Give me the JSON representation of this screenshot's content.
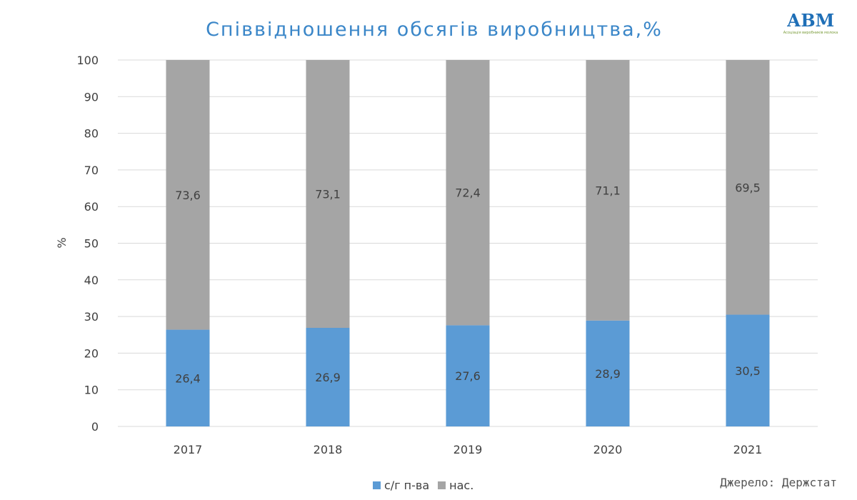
{
  "chart_data": {
    "type": "bar",
    "stacked": true,
    "title": "Співвідношення обсягів виробництва,%",
    "xlabel": "",
    "ylabel": "%",
    "categories": [
      "2017",
      "2018",
      "2019",
      "2020",
      "2021"
    ],
    "ylim": [
      0,
      100
    ],
    "yticks": [
      0,
      10,
      20,
      30,
      40,
      50,
      60,
      70,
      80,
      90,
      100
    ],
    "grid": true,
    "legend_position": "bottom",
    "series": [
      {
        "name": "с/г п-ва",
        "color": "#5b9bd5",
        "values": [
          26.4,
          26.9,
          27.6,
          28.9,
          30.5
        ],
        "labels": [
          "26,4",
          "26,9",
          "27,6",
          "28,9",
          "30,5"
        ]
      },
      {
        "name": "нас.",
        "color": "#a5a5a5",
        "values": [
          73.6,
          73.1,
          72.4,
          71.1,
          69.5
        ],
        "labels": [
          "73,6",
          "73,1",
          "72,4",
          "71,1",
          "69,5"
        ]
      }
    ]
  },
  "source": "Джерело: Держстат",
  "logo": {
    "text": "АВМ",
    "subtitle": "Асоціація виробників молока"
  }
}
